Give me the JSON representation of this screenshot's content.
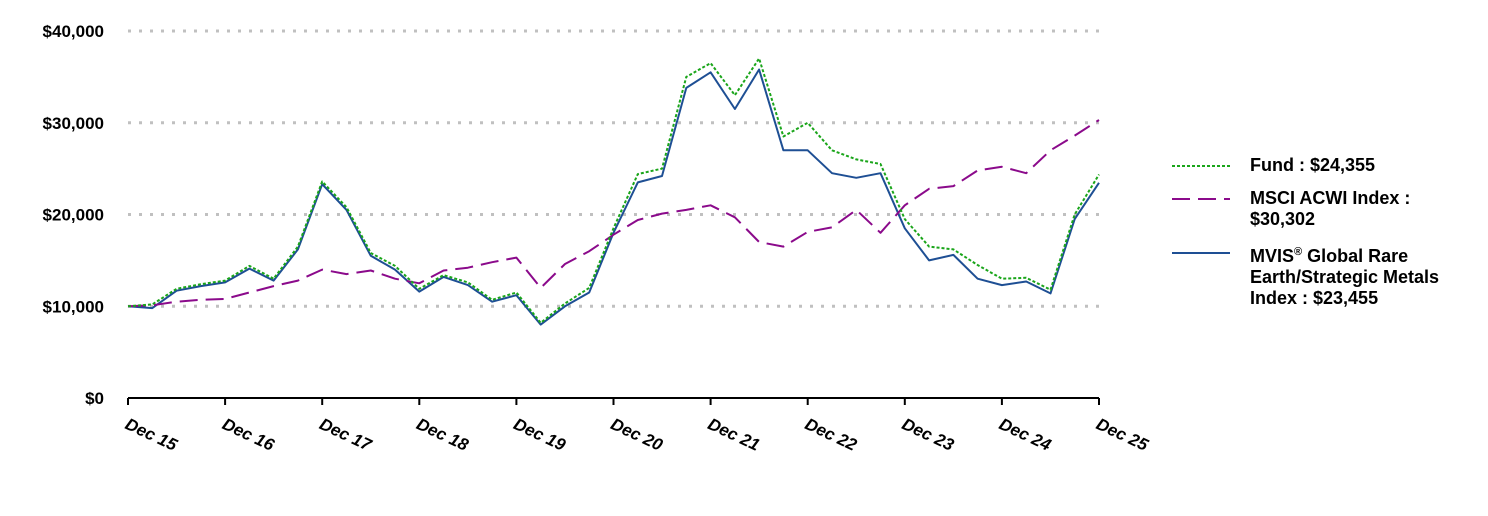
{
  "chart_data": {
    "type": "line",
    "title": "",
    "xlabel": "",
    "ylabel": "",
    "ylim": [
      0,
      40000
    ],
    "yticks": [
      "$0",
      "$10,000",
      "$20,000",
      "$30,000",
      "$40,000"
    ],
    "xticks": [
      "Dec 15",
      "Dec 16",
      "Dec 17",
      "Dec 18",
      "Dec 19",
      "Dec 20",
      "Dec 21",
      "Dec 22",
      "Dec 23",
      "Dec 24",
      "Dec 25"
    ],
    "grid": "horizontal dotted",
    "legend_position": "right",
    "x": [
      "Dec 15",
      "Mar 16",
      "Jun 16",
      "Sep 16",
      "Dec 16",
      "Mar 17",
      "Jun 17",
      "Sep 17",
      "Dec 17",
      "Mar 18",
      "Jun 18",
      "Sep 18",
      "Dec 18",
      "Mar 19",
      "Jun 19",
      "Sep 19",
      "Dec 19",
      "Mar 20",
      "Jun 20",
      "Sep 20",
      "Dec 20",
      "Mar 21",
      "Jun 21",
      "Sep 21",
      "Dec 21",
      "Mar 22",
      "Jun 22",
      "Sep 22",
      "Dec 22",
      "Mar 23",
      "Jun 23",
      "Sep 23",
      "Dec 23",
      "Mar 24",
      "Jun 24",
      "Sep 24",
      "Dec 24",
      "Mar 25",
      "Jun 25",
      "Sep 25",
      "Dec 25"
    ],
    "series": [
      {
        "name": "Fund",
        "final_value": 24355,
        "color": "#1aa51a",
        "style": "dotted",
        "values": [
          10000,
          10200,
          11900,
          12400,
          12800,
          14400,
          13000,
          16500,
          23600,
          20800,
          15800,
          14400,
          11900,
          13400,
          12600,
          10700,
          11500,
          8200,
          10300,
          12000,
          18500,
          24400,
          25000,
          35000,
          36500,
          33000,
          37000,
          28500,
          30000,
          27000,
          26000,
          25500,
          19500,
          16500,
          16200,
          14500,
          13000,
          13100,
          11800,
          20000,
          24355
        ]
      },
      {
        "name": "MSCI ACWI Index",
        "final_value": 30302,
        "color": "#8b0a8b",
        "style": "dashed",
        "values": [
          10000,
          10100,
          10500,
          10700,
          10800,
          11500,
          12200,
          12800,
          14000,
          13500,
          13900,
          13000,
          12500,
          13900,
          14200,
          14800,
          15300,
          12000,
          14600,
          16000,
          17800,
          19400,
          20100,
          20500,
          21000,
          19700,
          17000,
          16500,
          18100,
          18600,
          20500,
          18000,
          21000,
          22800,
          23100,
          24800,
          25200,
          24500,
          27000,
          28600,
          30302
        ]
      },
      {
        "name": "MVIS® Global Rare Earth/Strategic Metals Index",
        "final_value": 23455,
        "color": "#1e4f94",
        "style": "solid",
        "values": [
          10000,
          9800,
          11700,
          12200,
          12600,
          14100,
          12800,
          16200,
          23300,
          20500,
          15500,
          14000,
          11600,
          13200,
          12300,
          10500,
          11200,
          8000,
          10000,
          11500,
          18000,
          23500,
          24200,
          33800,
          35500,
          31500,
          35800,
          27000,
          27000,
          24500,
          24000,
          24500,
          18500,
          15000,
          15600,
          13000,
          12300,
          12700,
          11400,
          19500,
          23455
        ]
      }
    ]
  },
  "legend": {
    "fund": {
      "name": "Fund : $24,355"
    },
    "msci": {
      "name": "MSCI ACWI Index : $30,302"
    },
    "mvis": {
      "name_pre": "MVIS",
      "reg": "®",
      "name_post": " Global Rare Earth/Strategic Metals Index : $23,455"
    }
  }
}
